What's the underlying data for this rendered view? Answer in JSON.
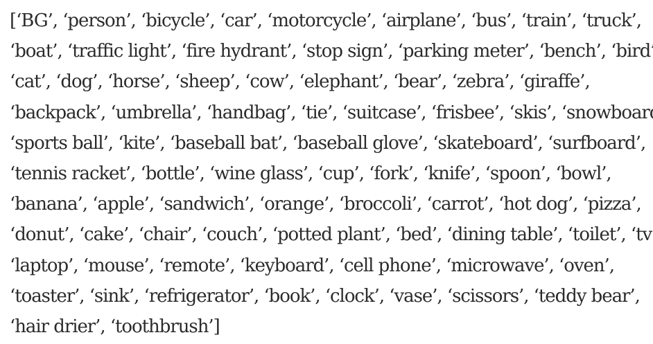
{
  "document": {
    "lines": [
      "[‘BG’, ‘person’, ‘bicycle’, ‘car’, ‘motorcycle’, ‘airplane’, ‘bus’, ‘train’, ‘truck’,",
      "‘boat’, ‘traffic light’, ‘fire hydrant’, ‘stop sign’, ‘parking meter’, ‘bench’, ‘bird’,",
      "‘cat’, ‘dog’, ‘horse’, ‘sheep’, ‘cow’, ‘elephant’, ‘bear’, ‘zebra’, ‘giraffe’,",
      "‘backpack’, ‘umbrella’, ‘handbag’, ‘tie’, ‘suitcase’, ‘frisbee’, ‘skis’, ‘snowboard’,",
      "‘sports ball’, ‘kite’, ‘baseball bat’, ‘baseball glove’, ‘skateboard’, ‘surfboard’,",
      "‘tennis racket’, ‘bottle’, ‘wine glass’, ‘cup’, ‘fork’, ‘knife’, ‘spoon’, ‘bowl’,",
      "‘banana’, ‘apple’, ‘sandwich’, ‘orange’, ‘broccoli’, ‘carrot’, ‘hot dog’, ‘pizza’,",
      "‘donut’, ‘cake’, ‘chair’, ‘couch’, ‘potted plant’, ‘bed’, ‘dining table’, ‘toilet’, ‘tv’,",
      "‘laptop’, ‘mouse’, ‘remote’, ‘keyboard’, ‘cell phone’, ‘microwave’, ‘oven’,",
      "‘toaster’, ‘sink’, ‘refrigerator’, ‘book’, ‘clock’, ‘vase’, ‘scissors’, ‘teddy bear’,",
      "‘hair drier’, ‘toothbrush’]"
    ]
  }
}
